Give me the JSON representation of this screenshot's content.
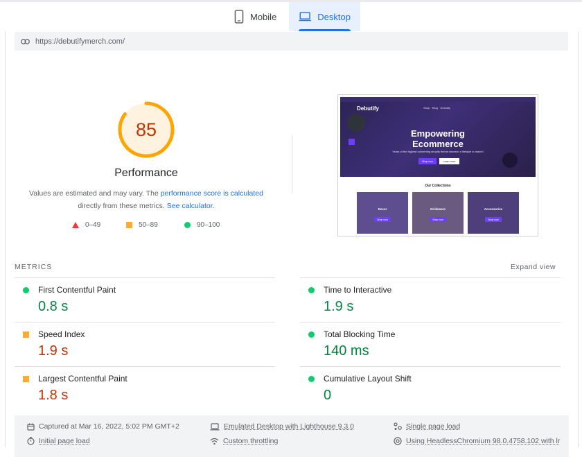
{
  "tabs": {
    "mobile": "Mobile",
    "desktop": "Desktop"
  },
  "url": "https://debutifymerch.com/",
  "performance": {
    "score": "85",
    "score_value": 85,
    "title": "Performance",
    "desc_prefix": "Values are estimated and may vary. The ",
    "desc_link1": "performance score is calculated",
    "desc_mid": "directly from these metrics. ",
    "desc_link2": "See calculator",
    "desc_suffix": ".",
    "gauge_color": "#ffa400"
  },
  "legend": {
    "fail": "0–49",
    "average": "50–89",
    "pass": "90–100"
  },
  "thumbnail": {
    "logo": "Debutify",
    "nav": "Shop  ·  Blog  ·  Debutify",
    "headline_1": "Empowering",
    "headline_2": "Ecommerce",
    "subtext": "Years of the highest converting shopify theme deserve a lifestyle to match!",
    "btn_shop": "Shop now",
    "btn_learn": "Learn more",
    "collections_title": "Our Collections",
    "collections": [
      {
        "label": "Decor",
        "btn": "Shop now"
      },
      {
        "label": "Drinkware",
        "btn": "Shop now"
      },
      {
        "label": "Accessories",
        "btn": "Shop now"
      }
    ]
  },
  "metrics": {
    "section_label": "METRICS",
    "expand_label": "Expand view",
    "items": [
      {
        "name": "First Contentful Paint",
        "value": "0.8 s",
        "status": "pass"
      },
      {
        "name": "Time to Interactive",
        "value": "1.9 s",
        "status": "pass"
      },
      {
        "name": "Speed Index",
        "value": "1.9 s",
        "status": "average"
      },
      {
        "name": "Total Blocking Time",
        "value": "140 ms",
        "status": "pass"
      },
      {
        "name": "Largest Contentful Paint",
        "value": "1.8 s",
        "status": "average"
      },
      {
        "name": "Cumulative Layout Shift",
        "value": "0",
        "status": "pass"
      }
    ]
  },
  "footer": {
    "captured": "Captured at Mar 16, 2022, 5:02 PM GMT+2",
    "emulated": "Emulated Desktop with Lighthouse 9.3.0",
    "single_page": "Single page load",
    "initial_load": "Initial page load",
    "throttling": "Custom throttling",
    "browser": "Using HeadlessChromium 98.0.4758.102 with lr"
  },
  "colors": {
    "accent": "#1a73e8",
    "pass": "#0cce6b",
    "average": "#ffa400",
    "fail": "#ff3333"
  }
}
